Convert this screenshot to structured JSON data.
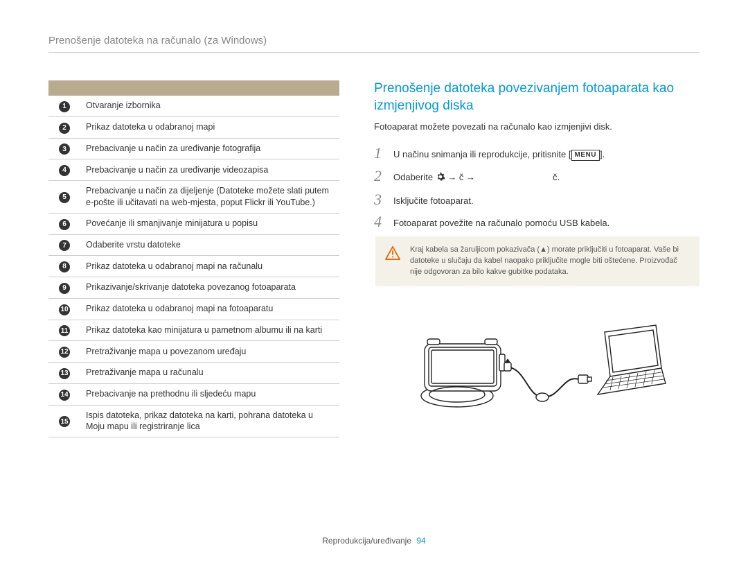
{
  "header": {
    "title": "Prenošenje datoteka na računalo (za Windows)"
  },
  "colors": {
    "accent": "#0099d8",
    "table_header_bg": "#b9ab8d",
    "num_bg": "#333333",
    "warn_bg": "#f4f1e9",
    "warn_border": "#e06c00"
  },
  "table": {
    "rows": [
      {
        "n": "1",
        "text": "Otvaranje izbornika"
      },
      {
        "n": "2",
        "text": "Prikaz datoteka u odabranoj mapi"
      },
      {
        "n": "3",
        "text": "Prebacivanje u način za uređivanje fotografija"
      },
      {
        "n": "4",
        "text": "Prebacivanje u način za uređivanje videozapisa"
      },
      {
        "n": "5",
        "text": "Prebacivanje u način za dijeljenje (Datoteke možete slati putem e-pošte ili učitavati na web-mjesta, poput Flickr ili YouTube.)"
      },
      {
        "n": "6",
        "text": "Povećanje ili smanjivanje minijatura u popisu"
      },
      {
        "n": "7",
        "text": "Odaberite vrstu datoteke"
      },
      {
        "n": "8",
        "text": "Prikaz datoteka u odabranoj mapi na računalu"
      },
      {
        "n": "9",
        "text": "Prikazivanje/skrivanje datoteka povezanog fotoaparata"
      },
      {
        "n": "10",
        "text": "Prikaz datoteka u odabranoj mapi na fotoaparatu"
      },
      {
        "n": "11",
        "text": "Prikaz datoteka kao minijatura u pametnom albumu ili na karti"
      },
      {
        "n": "12",
        "text": "Pretraživanje mapa u povezanom uređaju"
      },
      {
        "n": "13",
        "text": "Pretraživanje mapa u računalu"
      },
      {
        "n": "14",
        "text": "Prebacivanje na prethodnu ili sljedeću mapu"
      },
      {
        "n": "15",
        "text": "Ispis datoteka, prikaz datoteka na karti, pohrana datoteka u Moju mapu ili registriranje lica"
      }
    ]
  },
  "right": {
    "title": "Prenošenje datoteka povezivanjem fotoaparata kao izmjenjivog diska",
    "intro": "Fotoaparat možete povezati na računalo kao izmjenjivi disk.",
    "steps": [
      {
        "n": "1",
        "pre": "U načinu snimanja ili reprodukcije, pritisnite [",
        "menu": "MENU",
        "post": "]."
      },
      {
        "n": "2",
        "pre": "Odaberite ",
        "gear": true,
        "mid": " → č → ",
        "post2": "č."
      },
      {
        "n": "3",
        "text": "Isključite fotoaparat."
      },
      {
        "n": "4",
        "text": "Fotoaparat povežite na računalo pomoću USB kabela."
      }
    ],
    "warning": "Kraj kabela sa žaruljicom pokazivača (▲) morate priključiti u fotoaparat. Vaše bi datoteke u slučaju da kabel naopako priključite mogle biti oštećene. Proizvođač nije odgovoran za bilo kakve gubitke podataka."
  },
  "footer": {
    "label": "Reprodukcija/uređivanje",
    "page": "94"
  }
}
